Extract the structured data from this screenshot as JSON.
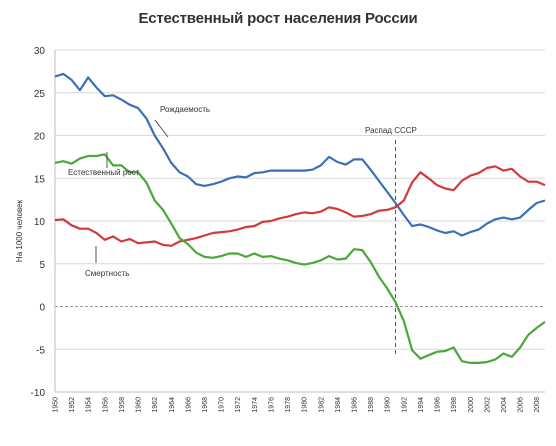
{
  "chart_data": {
    "type": "line",
    "title": "Естественный рост населения России",
    "xlabel": "",
    "ylabel": "На 1000 человек",
    "ylim": [
      -10,
      30
    ],
    "xlim": [
      1950,
      2009
    ],
    "yticks": [
      -10,
      -5,
      0,
      5,
      10,
      15,
      20,
      25,
      30
    ],
    "xticks": [
      1950,
      1952,
      1954,
      1956,
      1958,
      1960,
      1962,
      1964,
      1966,
      1968,
      1970,
      1972,
      1974,
      1976,
      1978,
      1980,
      1982,
      1984,
      1986,
      1988,
      1990,
      1992,
      1994,
      1996,
      1998,
      2000,
      2002,
      2004,
      2006,
      2008
    ],
    "grid": true,
    "series": [
      {
        "name": "Рождаемость",
        "color": "#3b6fb6",
        "x": [
          1950,
          1951,
          1952,
          1953,
          1954,
          1955,
          1956,
          1957,
          1958,
          1959,
          1960,
          1961,
          1962,
          1963,
          1964,
          1965,
          1966,
          1967,
          1968,
          1969,
          1970,
          1971,
          1972,
          1973,
          1974,
          1975,
          1976,
          1977,
          1978,
          1979,
          1980,
          1981,
          1982,
          1983,
          1984,
          1985,
          1986,
          1987,
          1988,
          1989,
          1990,
          1991,
          1992,
          1993,
          1994,
          1995,
          1996,
          1997,
          1998,
          1999,
          2000,
          2001,
          2002,
          2003,
          2004,
          2005,
          2006,
          2007,
          2008,
          2009
        ],
        "y": [
          26.9,
          27.2,
          26.5,
          25.3,
          26.8,
          25.6,
          24.6,
          24.7,
          24.2,
          23.6,
          23.2,
          22.0,
          20.0,
          18.5,
          16.8,
          15.7,
          15.2,
          14.3,
          14.1,
          14.3,
          14.6,
          15.0,
          15.2,
          15.1,
          15.6,
          15.7,
          15.9,
          15.9,
          15.9,
          15.9,
          15.9,
          16.0,
          16.5,
          17.5,
          16.9,
          16.6,
          17.2,
          17.2,
          16.0,
          14.7,
          13.4,
          12.1,
          10.7,
          9.4,
          9.6,
          9.3,
          8.9,
          8.6,
          8.8,
          8.3,
          8.7,
          9.0,
          9.7,
          10.2,
          10.4,
          10.2,
          10.4,
          11.3,
          12.1,
          12.4
        ]
      },
      {
        "name": "Смертность",
        "color": "#d33a3a",
        "x": [
          1950,
          1951,
          1952,
          1953,
          1954,
          1955,
          1956,
          1957,
          1958,
          1959,
          1960,
          1961,
          1962,
          1963,
          1964,
          1965,
          1966,
          1967,
          1968,
          1969,
          1970,
          1971,
          1972,
          1973,
          1974,
          1975,
          1976,
          1977,
          1978,
          1979,
          1980,
          1981,
          1982,
          1983,
          1984,
          1985,
          1986,
          1987,
          1988,
          1989,
          1990,
          1991,
          1992,
          1993,
          1994,
          1995,
          1996,
          1997,
          1998,
          1999,
          2000,
          2001,
          2002,
          2003,
          2004,
          2005,
          2006,
          2007,
          2008,
          2009
        ],
        "y": [
          10.1,
          10.2,
          9.5,
          9.1,
          9.1,
          8.6,
          7.8,
          8.2,
          7.6,
          7.9,
          7.4,
          7.5,
          7.6,
          7.2,
          7.1,
          7.6,
          7.8,
          8.0,
          8.3,
          8.6,
          8.7,
          8.8,
          9.0,
          9.3,
          9.4,
          9.9,
          10.0,
          10.3,
          10.5,
          10.8,
          11.0,
          10.9,
          11.1,
          11.6,
          11.4,
          11.0,
          10.5,
          10.6,
          10.8,
          11.2,
          11.3,
          11.6,
          12.4,
          14.5,
          15.7,
          15.0,
          14.2,
          13.8,
          13.6,
          14.7,
          15.3,
          15.6,
          16.2,
          16.4,
          15.9,
          16.1,
          15.2,
          14.6,
          14.6,
          14.2
        ]
      },
      {
        "name": "Естественный рост",
        "color": "#4aa83a",
        "x": [
          1950,
          1951,
          1952,
          1953,
          1954,
          1955,
          1956,
          1957,
          1958,
          1959,
          1960,
          1961,
          1962,
          1963,
          1964,
          1965,
          1966,
          1967,
          1968,
          1969,
          1970,
          1971,
          1972,
          1973,
          1974,
          1975,
          1976,
          1977,
          1978,
          1979,
          1980,
          1981,
          1982,
          1983,
          1984,
          1985,
          1986,
          1987,
          1988,
          1989,
          1990,
          1991,
          1992,
          1993,
          1994,
          1995,
          1996,
          1997,
          1998,
          1999,
          2000,
          2001,
          2002,
          2003,
          2004,
          2005,
          2006,
          2007,
          2008,
          2009
        ],
        "y": [
          16.8,
          17.0,
          16.7,
          17.3,
          17.6,
          17.6,
          17.8,
          16.5,
          16.5,
          15.7,
          15.7,
          14.5,
          12.4,
          11.3,
          9.7,
          8.0,
          7.3,
          6.3,
          5.8,
          5.7,
          5.9,
          6.2,
          6.2,
          5.8,
          6.2,
          5.8,
          5.9,
          5.6,
          5.4,
          5.1,
          4.9,
          5.1,
          5.4,
          5.9,
          5.5,
          5.6,
          6.7,
          6.6,
          5.2,
          3.5,
          2.1,
          0.5,
          -1.7,
          -5.1,
          -6.1,
          -5.7,
          -5.3,
          -5.2,
          -4.8,
          -6.4,
          -6.6,
          -6.6,
          -6.5,
          -6.2,
          -5.5,
          -5.9,
          -4.8,
          -3.3,
          -2.5,
          -1.8
        ]
      }
    ],
    "annotations": [
      {
        "text": "Рождаемость"
      },
      {
        "text": "Естественный рост"
      },
      {
        "text": "Смертность"
      },
      {
        "text": "Распад СССР",
        "x": 1991
      }
    ]
  }
}
